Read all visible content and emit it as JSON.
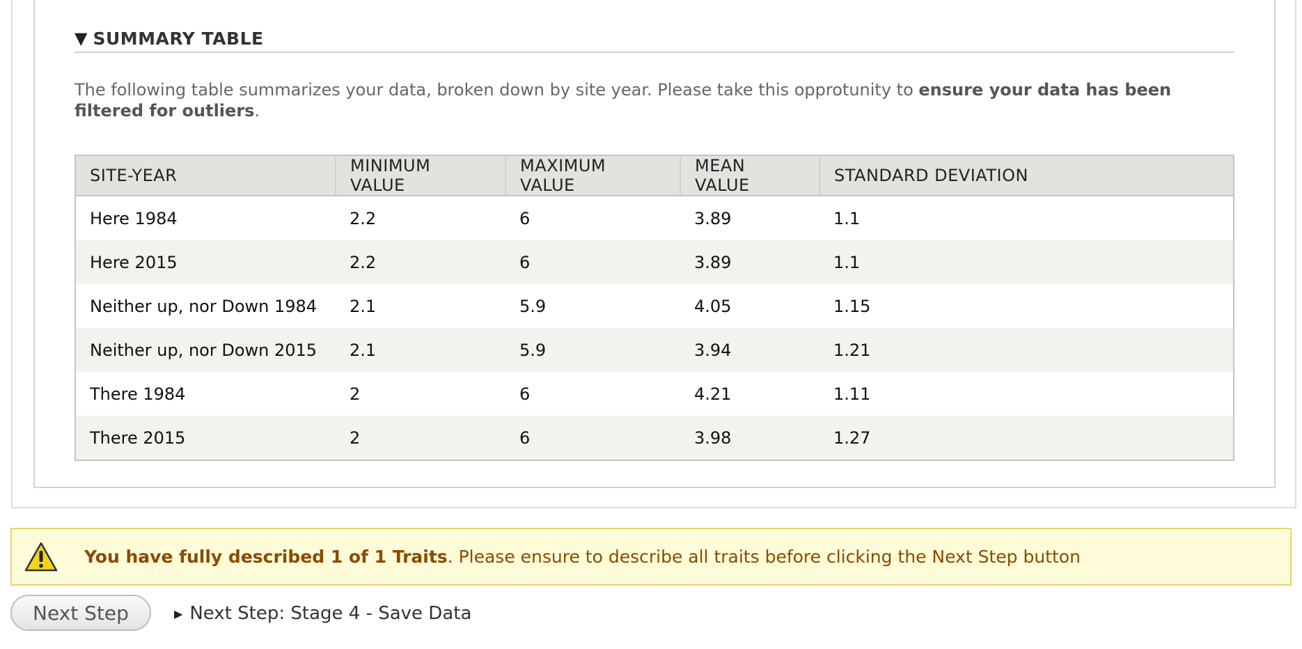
{
  "section": {
    "toggle_glyph": "▼",
    "title": "SUMMARY TABLE"
  },
  "description": {
    "text": "The following table summarizes your data, broken down by site year. Please take this opprotunity to ",
    "bold": "ensure your data has been filtered for outliers",
    "end": "."
  },
  "table": {
    "headers": [
      "SITE-YEAR",
      "MINIMUM VALUE",
      "MAXIMUM VALUE",
      "MEAN VALUE",
      "STANDARD DEVIATION"
    ],
    "rows": [
      [
        "Here 1984",
        "2.2",
        "6",
        "3.89",
        "1.1"
      ],
      [
        "Here 2015",
        "2.2",
        "6",
        "3.89",
        "1.1"
      ],
      [
        "Neither up, nor Down 1984",
        "2.1",
        "5.9",
        "4.05",
        "1.15"
      ],
      [
        "Neither up, nor Down 2015",
        "2.1",
        "5.9",
        "3.94",
        "1.21"
      ],
      [
        "There 1984",
        "2",
        "6",
        "4.21",
        "1.11"
      ],
      [
        "There 2015",
        "2",
        "6",
        "3.98",
        "1.27"
      ]
    ]
  },
  "warning": {
    "icon": "warning-icon",
    "bold": "You have fully described 1 of 1 Traits",
    "text": ". Please ensure to describe all traits before clicking the Next Step button"
  },
  "actions": {
    "next_button_label": "Next Step",
    "next_link_caret": "▶",
    "next_link_label": "Next Step: Stage 4 - Save Data"
  },
  "colors": {
    "warning_bg": "#fefbd8",
    "warning_border": "#e8d56a",
    "warning_text": "#8a4b00",
    "table_header_bg": "#e2e2de",
    "table_row_alt_bg": "#f2f2ee"
  }
}
